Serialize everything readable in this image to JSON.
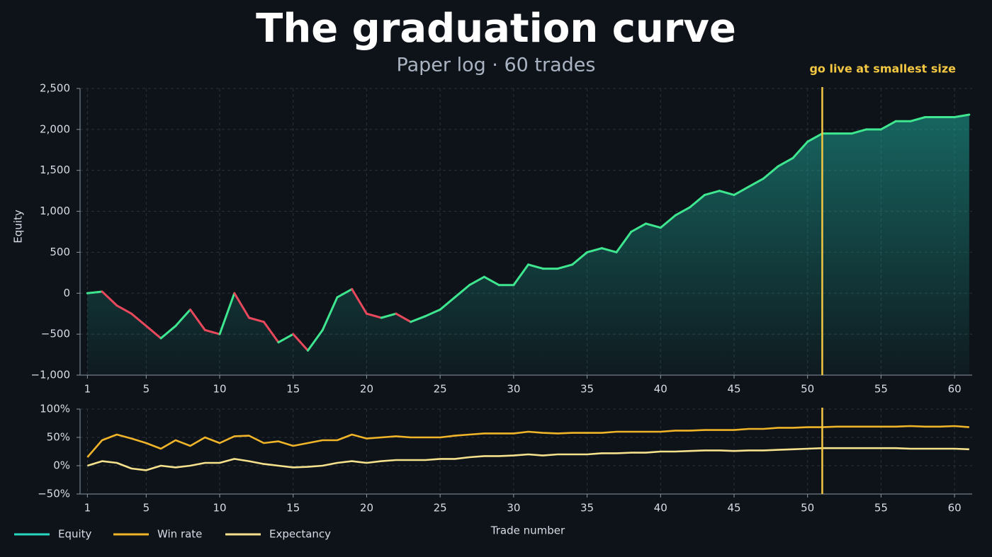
{
  "chart_data": [
    {
      "type": "line",
      "title": "The graduation curve",
      "subtitle": "Paper log · 60 trades",
      "ylabel": "Equity",
      "x": [
        1,
        2,
        3,
        4,
        5,
        6,
        7,
        8,
        9,
        10,
        11,
        12,
        13,
        14,
        15,
        16,
        17,
        18,
        19,
        20,
        21,
        22,
        23,
        24,
        25,
        26,
        27,
        28,
        29,
        30,
        31,
        32,
        33,
        34,
        35,
        36,
        37,
        38,
        39,
        40,
        41,
        42,
        43,
        44,
        45,
        46,
        47,
        48,
        49,
        50,
        51,
        52,
        53,
        54,
        55,
        56,
        57,
        58,
        59,
        60,
        61
      ],
      "series": [
        {
          "name": "Equity",
          "color": "#27d8bf",
          "rise_color": "#3ee68f",
          "fall_color": "#e8485c",
          "values": [
            0,
            20,
            -150,
            -250,
            -400,
            -550,
            -400,
            -200,
            -450,
            -500,
            0,
            -300,
            -350,
            -600,
            -500,
            -700,
            -450,
            -50,
            50,
            -250,
            -300,
            -250,
            -350,
            -280,
            -200,
            -50,
            100,
            200,
            100,
            100,
            350,
            300,
            300,
            350,
            500,
            550,
            500,
            750,
            850,
            800,
            950,
            1050,
            1200,
            1250,
            1200,
            1300,
            1400,
            1550,
            1650,
            1850,
            1950,
            1950,
            1950,
            2000,
            2000,
            2100,
            2100,
            2150,
            2150,
            2150,
            2180
          ]
        }
      ],
      "xlim": [
        0.5,
        61.2
      ],
      "xticks": [
        1,
        5,
        10,
        15,
        20,
        25,
        30,
        35,
        40,
        45,
        50,
        55,
        60
      ],
      "ylim": [
        -1000,
        2500
      ],
      "yticks": [
        {
          "value": -1000,
          "label": "−1,000"
        },
        {
          "value": -500,
          "label": "−500"
        },
        0,
        500,
        {
          "value": 1000,
          "label": "1,000"
        },
        {
          "value": 1500,
          "label": "1,500"
        },
        {
          "value": 2000,
          "label": "2,000"
        },
        {
          "value": 2500,
          "label": "2,500"
        }
      ],
      "grid": true,
      "annotation": {
        "x": 51,
        "text": "go live at smallest size",
        "color": "#f4c842"
      }
    },
    {
      "type": "line",
      "xlabel": "Trade number",
      "x": [
        1,
        2,
        3,
        4,
        5,
        6,
        7,
        8,
        9,
        10,
        11,
        12,
        13,
        14,
        15,
        16,
        17,
        18,
        19,
        20,
        21,
        22,
        23,
        24,
        25,
        26,
        27,
        28,
        29,
        30,
        31,
        32,
        33,
        34,
        35,
        36,
        37,
        38,
        39,
        40,
        41,
        42,
        43,
        44,
        45,
        46,
        47,
        48,
        49,
        50,
        51,
        52,
        53,
        54,
        55,
        56,
        57,
        58,
        59,
        60,
        61
      ],
      "series": [
        {
          "name": "Win rate",
          "color": "#f0b429",
          "values": [
            15,
            45,
            55,
            48,
            40,
            30,
            45,
            35,
            50,
            40,
            52,
            53,
            40,
            43,
            35,
            40,
            45,
            45,
            55,
            48,
            50,
            52,
            50,
            50,
            50,
            53,
            55,
            57,
            57,
            57,
            60,
            58,
            57,
            58,
            58,
            58,
            60,
            60,
            60,
            60,
            62,
            62,
            63,
            63,
            63,
            65,
            65,
            67,
            67,
            68,
            68,
            69,
            69,
            69,
            69,
            69,
            70,
            69,
            69,
            70,
            68
          ]
        },
        {
          "name": "Expectancy",
          "color": "#f6e28c",
          "values": [
            0,
            8,
            5,
            -5,
            -8,
            0,
            -3,
            0,
            5,
            5,
            12,
            8,
            3,
            0,
            -3,
            -2,
            0,
            5,
            8,
            5,
            8,
            10,
            10,
            10,
            12,
            12,
            15,
            17,
            17,
            18,
            20,
            18,
            20,
            20,
            20,
            22,
            22,
            23,
            23,
            25,
            25,
            26,
            27,
            27,
            26,
            27,
            27,
            28,
            29,
            30,
            31,
            31,
            31,
            31,
            31,
            31,
            30,
            30,
            30,
            30,
            29
          ]
        }
      ],
      "xlim": [
        0.5,
        61.2
      ],
      "xticks": [
        1,
        5,
        10,
        15,
        20,
        25,
        30,
        35,
        40,
        45,
        50,
        55,
        60
      ],
      "ylim": [
        -50,
        100
      ],
      "yticks": [
        {
          "value": -50,
          "label": "−50%"
        },
        {
          "value": 0,
          "label": "0%"
        },
        {
          "value": 50,
          "label": "50%"
        },
        {
          "value": 100,
          "label": "100%"
        }
      ],
      "grid": true,
      "annotation": {
        "x": 51,
        "color": "#f4c842"
      }
    }
  ]
}
